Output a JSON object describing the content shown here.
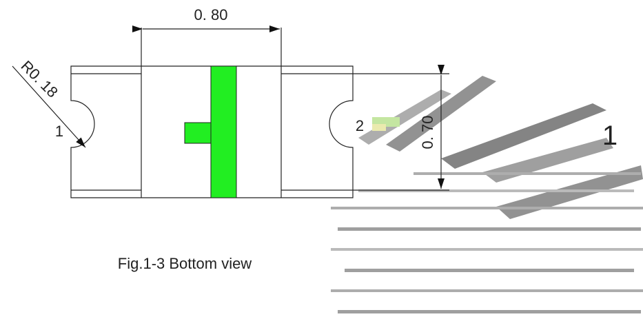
{
  "dimensions": {
    "width": "0. 80",
    "height": "0. 70",
    "radius": "R0. 18"
  },
  "pads": [
    "1",
    "2"
  ],
  "caption": "Fig.1-3 Bottom view",
  "artifact_label": "1"
}
